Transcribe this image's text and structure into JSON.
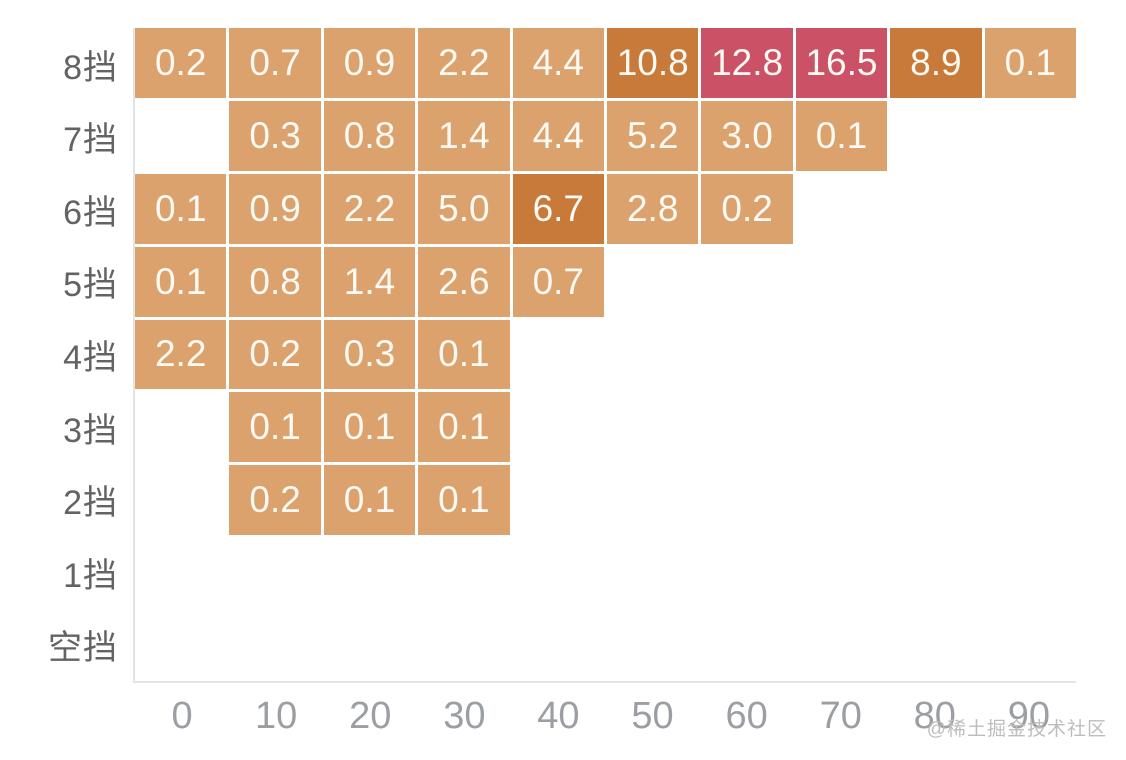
{
  "chart_data": {
    "type": "heatmap",
    "title": "",
    "xlabel": "",
    "ylabel": "",
    "x_ticks": [
      "0",
      "10",
      "20",
      "30",
      "40",
      "50",
      "60",
      "70",
      "80",
      "90"
    ],
    "y_categories": [
      "8挡",
      "7挡",
      "6挡",
      "5挡",
      "4挡",
      "3挡",
      "2挡",
      "1挡",
      "空挡"
    ],
    "rows": [
      {
        "label": "8挡",
        "values": [
          0.2,
          0.7,
          0.9,
          2.2,
          4.4,
          10.8,
          12.8,
          16.5,
          8.9,
          0.1
        ]
      },
      {
        "label": "7挡",
        "values": [
          null,
          0.3,
          0.8,
          1.4,
          4.4,
          5.2,
          3.0,
          0.1,
          null,
          null
        ]
      },
      {
        "label": "6挡",
        "values": [
          0.1,
          0.9,
          2.2,
          5.0,
          6.7,
          2.8,
          0.2,
          null,
          null,
          null
        ]
      },
      {
        "label": "5挡",
        "values": [
          0.1,
          0.8,
          1.4,
          2.6,
          0.7,
          null,
          null,
          null,
          null,
          null
        ]
      },
      {
        "label": "4挡",
        "values": [
          2.2,
          0.2,
          0.3,
          0.1,
          null,
          null,
          null,
          null,
          null,
          null
        ]
      },
      {
        "label": "3挡",
        "values": [
          null,
          0.1,
          0.1,
          0.1,
          null,
          null,
          null,
          null,
          null,
          null
        ]
      },
      {
        "label": "2挡",
        "values": [
          null,
          0.2,
          0.1,
          0.1,
          null,
          null,
          null,
          null,
          null,
          null
        ]
      },
      {
        "label": "1挡",
        "values": [
          null,
          null,
          null,
          null,
          null,
          null,
          null,
          null,
          null,
          null
        ]
      },
      {
        "label": "空挡",
        "values": [
          null,
          null,
          null,
          null,
          null,
          null,
          null,
          null,
          null,
          null
        ]
      }
    ],
    "colorscale": {
      "low_color": "#dca26e",
      "mid_color": "#c87a3a",
      "high_color": "#cb5266",
      "mid_threshold": 6,
      "high_threshold": 12
    },
    "layout": {
      "grid": "off",
      "legend": "none",
      "cell_text_color": "#fdf9f3",
      "axis_line_color": "#e4e4e4",
      "y_label_color": "#636363",
      "x_label_color": "#9b9fa4"
    }
  },
  "watermark": "@稀土掘金技术社区"
}
